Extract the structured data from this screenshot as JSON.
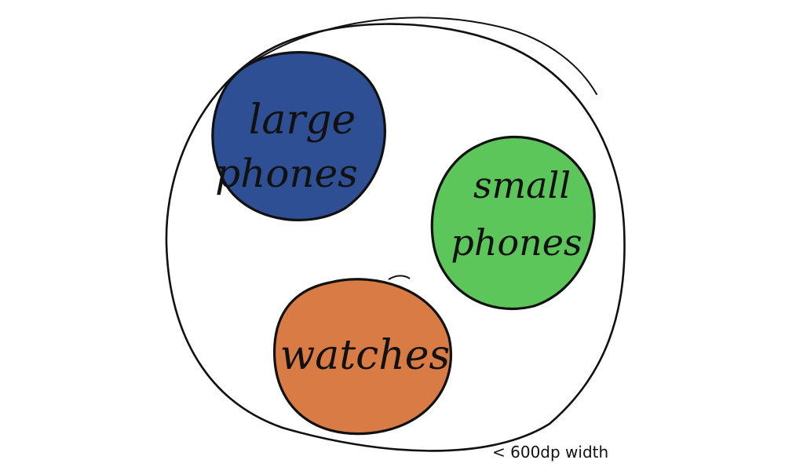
{
  "diagram": {
    "groups": [
      {
        "id": "large",
        "line1": "large",
        "line2": "phones",
        "color": "#2e4f94"
      },
      {
        "id": "small",
        "line1": "small",
        "line2": "phones",
        "color": "#5dc65a"
      },
      {
        "id": "watches",
        "line1": "watches",
        "color": "#d97b45"
      }
    ],
    "width_note": "< 600dp width",
    "outline_color": "#111111",
    "background": "#ffffff"
  }
}
